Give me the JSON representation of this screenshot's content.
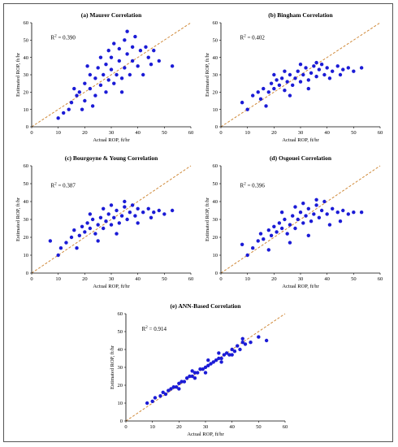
{
  "chart_data": [
    {
      "type": "scatter",
      "title": "(a) Maurer Correlation",
      "xlabel": "Actual ROP, ft/hr",
      "ylabel": "Estimated ROP, ft/hr",
      "xlim": [
        0,
        60
      ],
      "ylim": [
        0,
        60
      ],
      "xticks": [
        "0",
        "10",
        "20",
        "30",
        "40",
        "50",
        "60"
      ],
      "yticks": [
        "0",
        "10",
        "20",
        "30",
        "40",
        "50",
        "60"
      ],
      "annotation": "R",
      "annotation_sup": "2",
      "annotation_value": " = 0.390",
      "grid": false,
      "reference_line": {
        "style": "dashed",
        "color": "#d08a3a",
        "from": [
          0,
          0
        ],
        "to": [
          60,
          60
        ]
      },
      "series": [
        {
          "color": "#1b1bd6",
          "points": [
            [
              10,
              5
            ],
            [
              12,
              8
            ],
            [
              14,
              10
            ],
            [
              15,
              14
            ],
            [
              17,
              18
            ],
            [
              18,
              20
            ],
            [
              20,
              15
            ],
            [
              20,
              25
            ],
            [
              22,
              22
            ],
            [
              22,
              30
            ],
            [
              24,
              18
            ],
            [
              24,
              28
            ],
            [
              25,
              34
            ],
            [
              26,
              24
            ],
            [
              27,
              30
            ],
            [
              28,
              20
            ],
            [
              28,
              36
            ],
            [
              29,
              27
            ],
            [
              30,
              33
            ],
            [
              30,
              40
            ],
            [
              31,
              25
            ],
            [
              32,
              30
            ],
            [
              33,
              38
            ],
            [
              33,
              45
            ],
            [
              34,
              28
            ],
            [
              35,
              34
            ],
            [
              35,
              50
            ],
            [
              36,
              42
            ],
            [
              37,
              30
            ],
            [
              38,
              38
            ],
            [
              38,
              46
            ],
            [
              40,
              35
            ],
            [
              41,
              44
            ],
            [
              42,
              30
            ],
            [
              44,
              40
            ],
            [
              45,
              36
            ],
            [
              48,
              38
            ],
            [
              53,
              35
            ],
            [
              19,
              10
            ],
            [
              23,
              12
            ],
            [
              26,
              40
            ],
            [
              31,
              48
            ],
            [
              36,
              55
            ],
            [
              39,
              52
            ],
            [
              16,
              22
            ],
            [
              21,
              35
            ],
            [
              29,
              44
            ],
            [
              34,
              20
            ],
            [
              43,
              46
            ],
            [
              46,
              44
            ]
          ]
        }
      ]
    },
    {
      "type": "scatter",
      "title": "(b) Bingham Correlation",
      "xlabel": "Actual ROP, ft/hr",
      "ylabel": "Estimated ROP, ft/hr",
      "xlim": [
        0,
        60
      ],
      "ylim": [
        0,
        60
      ],
      "xticks": [
        "0",
        "10",
        "20",
        "30",
        "40",
        "50",
        "60"
      ],
      "yticks": [
        "0",
        "10",
        "20",
        "30",
        "40",
        "50",
        "60"
      ],
      "annotation": "R",
      "annotation_sup": "2",
      "annotation_value": " = 0.402",
      "grid": false,
      "reference_line": {
        "style": "dashed",
        "color": "#d08a3a",
        "from": [
          0,
          0
        ],
        "to": [
          60,
          60
        ]
      },
      "series": [
        {
          "color": "#1b1bd6",
          "points": [
            [
              8,
              14
            ],
            [
              10,
              10
            ],
            [
              12,
              18
            ],
            [
              14,
              20
            ],
            [
              15,
              16
            ],
            [
              16,
              22
            ],
            [
              18,
              20
            ],
            [
              19,
              25
            ],
            [
              20,
              22
            ],
            [
              21,
              27
            ],
            [
              22,
              24
            ],
            [
              23,
              28
            ],
            [
              24,
              21
            ],
            [
              25,
              26
            ],
            [
              26,
              30
            ],
            [
              27,
              24
            ],
            [
              28,
              28
            ],
            [
              29,
              32
            ],
            [
              30,
              26
            ],
            [
              31,
              30
            ],
            [
              32,
              34
            ],
            [
              33,
              27
            ],
            [
              34,
              31
            ],
            [
              35,
              35
            ],
            [
              36,
              29
            ],
            [
              37,
              33
            ],
            [
              38,
              36
            ],
            [
              39,
              30
            ],
            [
              40,
              34
            ],
            [
              42,
              32
            ],
            [
              44,
              35
            ],
            [
              46,
              33
            ],
            [
              48,
              34
            ],
            [
              50,
              32
            ],
            [
              53,
              34
            ],
            [
              17,
              12
            ],
            [
              26,
              18
            ],
            [
              33,
              22
            ],
            [
              41,
              28
            ],
            [
              45,
              30
            ],
            [
              20,
              30
            ],
            [
              30,
              36
            ],
            [
              36,
              37
            ],
            [
              24,
              32
            ]
          ]
        }
      ]
    },
    {
      "type": "scatter",
      "title": "(c) Bourgoyne & Young Correlation",
      "xlabel": "Actual ROP, ft/hr",
      "ylabel": "Estimated ROP, ft/hr",
      "xlim": [
        0,
        60
      ],
      "ylim": [
        0,
        60
      ],
      "xticks": [
        "0",
        "10",
        "20",
        "30",
        "40",
        "50",
        "60"
      ],
      "yticks": [
        "0",
        "10",
        "20",
        "30",
        "40",
        "50",
        "60"
      ],
      "annotation": "R",
      "annotation_sup": "2",
      "annotation_value": " = 0.387",
      "grid": false,
      "reference_line": {
        "style": "dashed",
        "color": "#d08a3a",
        "from": [
          0,
          0
        ],
        "to": [
          60,
          60
        ]
      },
      "series": [
        {
          "color": "#1b1bd6",
          "points": [
            [
              7,
              18
            ],
            [
              10,
              10
            ],
            [
              11,
              14
            ],
            [
              13,
              17
            ],
            [
              15,
              20
            ],
            [
              16,
              24
            ],
            [
              18,
              21
            ],
            [
              19,
              26
            ],
            [
              20,
              23
            ],
            [
              21,
              28
            ],
            [
              22,
              25
            ],
            [
              23,
              30
            ],
            [
              24,
              22
            ],
            [
              25,
              27
            ],
            [
              26,
              31
            ],
            [
              27,
              25
            ],
            [
              28,
              29
            ],
            [
              29,
              33
            ],
            [
              30,
              27
            ],
            [
              31,
              31
            ],
            [
              32,
              35
            ],
            [
              33,
              28
            ],
            [
              34,
              32
            ],
            [
              35,
              37
            ],
            [
              36,
              30
            ],
            [
              37,
              34
            ],
            [
              38,
              38
            ],
            [
              39,
              32
            ],
            [
              40,
              36
            ],
            [
              42,
              34
            ],
            [
              44,
              36
            ],
            [
              46,
              34
            ],
            [
              48,
              35
            ],
            [
              50,
              33
            ],
            [
              53,
              35
            ],
            [
              17,
              14
            ],
            [
              25,
              18
            ],
            [
              32,
              22
            ],
            [
              40,
              28
            ],
            [
              45,
              31
            ],
            [
              22,
              33
            ],
            [
              30,
              38
            ],
            [
              35,
              40
            ],
            [
              27,
              36
            ]
          ]
        }
      ]
    },
    {
      "type": "scatter",
      "title": "(d) Osgouei Correlation",
      "xlabel": "Actual ROP, ft/hr",
      "ylabel": "Estimated ROP, ft/hr",
      "xlim": [
        0,
        60
      ],
      "ylim": [
        0,
        60
      ],
      "xticks": [
        "0",
        "10",
        "20",
        "30",
        "40",
        "50",
        "60"
      ],
      "yticks": [
        "0",
        "10",
        "20",
        "30",
        "40",
        "50",
        "60"
      ],
      "annotation": "R",
      "annotation_sup": "2",
      "annotation_value": " = 0.396",
      "grid": false,
      "reference_line": {
        "style": "dashed",
        "color": "#d08a3a",
        "from": [
          0,
          0
        ],
        "to": [
          60,
          60
        ]
      },
      "series": [
        {
          "color": "#1b1bd6",
          "points": [
            [
              8,
              16
            ],
            [
              10,
              10
            ],
            [
              12,
              14
            ],
            [
              14,
              18
            ],
            [
              15,
              22
            ],
            [
              16,
              19
            ],
            [
              18,
              24
            ],
            [
              19,
              21
            ],
            [
              20,
              26
            ],
            [
              21,
              23
            ],
            [
              22,
              28
            ],
            [
              23,
              25
            ],
            [
              24,
              30
            ],
            [
              25,
              22
            ],
            [
              26,
              27
            ],
            [
              27,
              32
            ],
            [
              28,
              25
            ],
            [
              29,
              30
            ],
            [
              30,
              34
            ],
            [
              31,
              28
            ],
            [
              32,
              32
            ],
            [
              33,
              36
            ],
            [
              34,
              29
            ],
            [
              35,
              33
            ],
            [
              36,
              38
            ],
            [
              37,
              31
            ],
            [
              38,
              35
            ],
            [
              39,
              40
            ],
            [
              40,
              33
            ],
            [
              42,
              36
            ],
            [
              44,
              34
            ],
            [
              46,
              35
            ],
            [
              48,
              33
            ],
            [
              50,
              34
            ],
            [
              53,
              34
            ],
            [
              18,
              13
            ],
            [
              26,
              17
            ],
            [
              33,
              21
            ],
            [
              41,
              27
            ],
            [
              45,
              29
            ],
            [
              23,
              34
            ],
            [
              31,
              39
            ],
            [
              36,
              41
            ],
            [
              28,
              37
            ]
          ]
        }
      ]
    },
    {
      "type": "scatter",
      "title": "(e) ANN-Based Correlation",
      "xlabel": "Actual ROP, ft/hr",
      "ylabel": "Estimated ROP, ft/hr",
      "xlim": [
        0,
        60
      ],
      "ylim": [
        0,
        60
      ],
      "xticks": [
        "0",
        "10",
        "20",
        "30",
        "40",
        "50",
        "60"
      ],
      "yticks": [
        "0",
        "10",
        "20",
        "30",
        "40",
        "50",
        "60"
      ],
      "annotation": "R",
      "annotation_sup": "2",
      "annotation_value": " = 0.914",
      "grid": false,
      "reference_line": {
        "style": "dashed",
        "color": "#d08a3a",
        "from": [
          0,
          0
        ],
        "to": [
          60,
          60
        ]
      },
      "series": [
        {
          "color": "#1b1bd6",
          "points": [
            [
              8,
              10
            ],
            [
              10,
              11
            ],
            [
              11,
              13
            ],
            [
              13,
              14
            ],
            [
              14,
              16
            ],
            [
              15,
              15
            ],
            [
              16,
              17
            ],
            [
              17,
              18
            ],
            [
              18,
              19
            ],
            [
              19,
              19
            ],
            [
              20,
              21
            ],
            [
              21,
              22
            ],
            [
              22,
              22
            ],
            [
              23,
              24
            ],
            [
              24,
              25
            ],
            [
              25,
              25
            ],
            [
              26,
              27
            ],
            [
              27,
              27
            ],
            [
              28,
              29
            ],
            [
              29,
              29
            ],
            [
              30,
              30
            ],
            [
              31,
              31
            ],
            [
              32,
              32
            ],
            [
              33,
              33
            ],
            [
              34,
              34
            ],
            [
              35,
              35
            ],
            [
              36,
              35
            ],
            [
              37,
              37
            ],
            [
              38,
              38
            ],
            [
              39,
              37
            ],
            [
              40,
              40
            ],
            [
              41,
              39
            ],
            [
              42,
              42
            ],
            [
              43,
              40
            ],
            [
              44,
              44
            ],
            [
              45,
              43
            ],
            [
              47,
              44
            ],
            [
              50,
              47
            ],
            [
              53,
              45
            ],
            [
              20,
              18
            ],
            [
              25,
              28
            ],
            [
              30,
              27
            ],
            [
              35,
              38
            ],
            [
              40,
              37
            ],
            [
              44,
              46
            ],
            [
              36,
              33
            ],
            [
              26,
              24
            ],
            [
              31,
              34
            ]
          ]
        }
      ]
    }
  ]
}
